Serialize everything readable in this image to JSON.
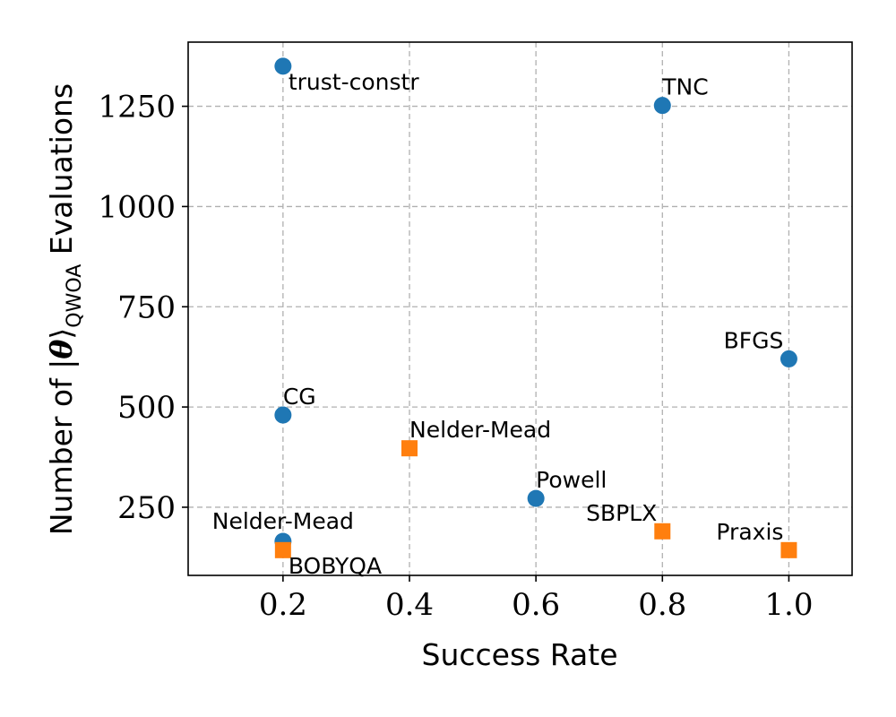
{
  "chart_data": {
    "type": "scatter",
    "title": "",
    "xlabel": "Success Rate",
    "ylabel_prefix": "Number of |",
    "ylabel_theta": "θ",
    "ylabel_rangle": "⟩",
    "ylabel_sub": "QWOA",
    "ylabel_suffix": " Evaluations",
    "xlim": [
      0.05,
      1.1
    ],
    "ylim": [
      80,
      1410
    ],
    "xticks": [
      0.2,
      0.4,
      0.6,
      0.8,
      1.0
    ],
    "xtick_labels": [
      "0.2",
      "0.4",
      "0.6",
      "0.8",
      "1.0"
    ],
    "yticks": [
      250,
      500,
      750,
      1000,
      1250
    ],
    "ytick_labels": [
      "250",
      "500",
      "750",
      "1000",
      "1250"
    ],
    "grid": true,
    "series": [
      {
        "marker": "circle",
        "color": "#1f77b4",
        "points": [
          {
            "label": "trust-constr",
            "x": 0.2,
            "y": 1350,
            "label_pos": "below-right"
          },
          {
            "label": "TNC",
            "x": 0.8,
            "y": 1252,
            "label_pos": "above-right"
          },
          {
            "label": "BFGS",
            "x": 1.0,
            "y": 620,
            "label_pos": "above-left"
          },
          {
            "label": "CG",
            "x": 0.2,
            "y": 480,
            "label_pos": "above-right"
          },
          {
            "label": "Powell",
            "x": 0.6,
            "y": 272,
            "label_pos": "above-right"
          },
          {
            "label": "Nelder-Mead",
            "x": 0.2,
            "y": 165,
            "label_pos": "above-center"
          }
        ]
      },
      {
        "marker": "square",
        "color": "#ff7f0e",
        "points": [
          {
            "label": "Nelder-Mead",
            "x": 0.4,
            "y": 397,
            "label_pos": "above-right"
          },
          {
            "label": "SBPLX",
            "x": 0.8,
            "y": 190,
            "label_pos": "above-left"
          },
          {
            "label": "Praxis",
            "x": 1.0,
            "y": 143,
            "label_pos": "above-left"
          },
          {
            "label": "BOBYQA",
            "x": 0.2,
            "y": 143,
            "label_pos": "below-right"
          }
        ]
      }
    ]
  }
}
